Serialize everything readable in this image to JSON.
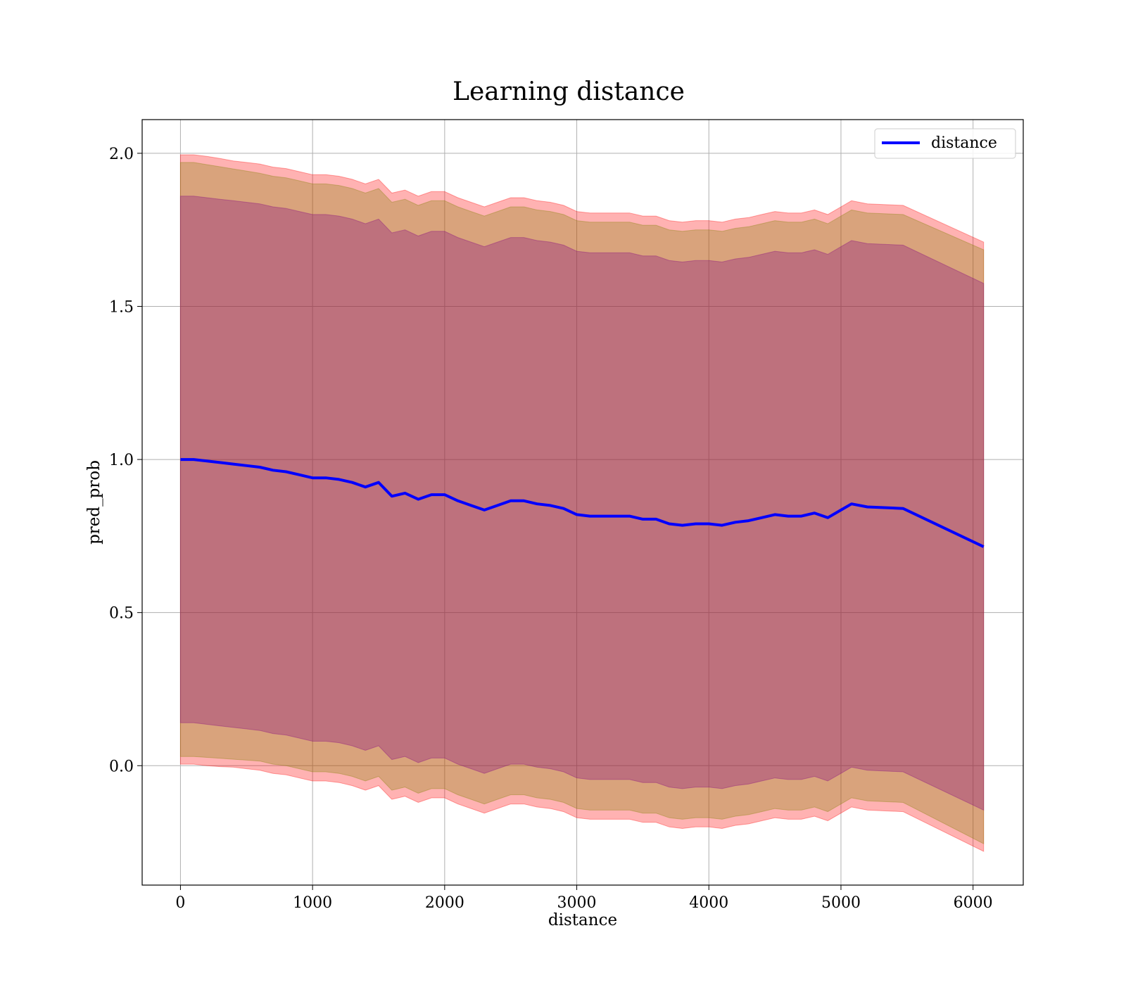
{
  "chart_data": {
    "type": "line",
    "title": "Learning distance",
    "xlabel": "distance",
    "ylabel": "pred_prob",
    "xlim": [
      -290,
      6380
    ],
    "ylim": [
      -0.39,
      2.11
    ],
    "xticks": [
      0,
      1000,
      2000,
      3000,
      4000,
      5000,
      6000
    ],
    "yticks": [
      0.0,
      0.5,
      1.0,
      1.5,
      2.0
    ],
    "xtick_labels": [
      "0",
      "1000",
      "2000",
      "3000",
      "4000",
      "5000",
      "6000"
    ],
    "ytick_labels": [
      "0.0",
      "0.5",
      "1.0",
      "1.5",
      "2.0"
    ],
    "grid": true,
    "legend": {
      "position": "top-right",
      "entries": [
        "distance"
      ]
    },
    "colors": {
      "line": "#0000ff",
      "band_outer": "#ff0000",
      "band_middle": "#808000",
      "band_inner": "#800080",
      "grid": "#b0b0b0"
    },
    "x": [
      0,
      100,
      200,
      300,
      400,
      500,
      600,
      700,
      800,
      900,
      1000,
      1100,
      1200,
      1300,
      1400,
      1500,
      1600,
      1700,
      1800,
      1900,
      2000,
      2100,
      2200,
      2300,
      2400,
      2500,
      2600,
      2700,
      2800,
      2900,
      3000,
      3100,
      3200,
      3300,
      3400,
      3500,
      3600,
      3700,
      3800,
      3900,
      4000,
      4100,
      4200,
      4300,
      4400,
      4500,
      4600,
      4700,
      4800,
      4900,
      5000,
      5080,
      5200,
      5470,
      6080
    ],
    "series": [
      {
        "name": "distance",
        "values": [
          1.0,
          1.0,
          0.995,
          0.99,
          0.985,
          0.98,
          0.975,
          0.965,
          0.96,
          0.95,
          0.94,
          0.94,
          0.935,
          0.925,
          0.91,
          0.925,
          0.88,
          0.89,
          0.87,
          0.885,
          0.885,
          0.865,
          0.85,
          0.835,
          0.85,
          0.865,
          0.865,
          0.855,
          0.85,
          0.84,
          0.82,
          0.815,
          0.815,
          0.815,
          0.815,
          0.805,
          0.805,
          0.79,
          0.785,
          0.79,
          0.79,
          0.785,
          0.795,
          0.8,
          0.81,
          0.82,
          0.815,
          0.815,
          0.825,
          0.81,
          0.835,
          0.855,
          0.845,
          0.84,
          0.715
        ],
        "bands": [
          {
            "level": "outer",
            "half_width": [
              0.995,
              0.995,
              0.995,
              0.993,
              0.99,
              0.99,
              0.99,
              0.99,
              0.99,
              0.99,
              0.99,
              0.99,
              0.99,
              0.99,
              0.99,
              0.99,
              0.99,
              0.99,
              0.99,
              0.99,
              0.99,
              0.99,
              0.99,
              0.99,
              0.99,
              0.99,
              0.99,
              0.99,
              0.99,
              0.99,
              0.99,
              0.99,
              0.99,
              0.99,
              0.99,
              0.99,
              0.99,
              0.99,
              0.99,
              0.99,
              0.99,
              0.99,
              0.99,
              0.99,
              0.99,
              0.99,
              0.99,
              0.99,
              0.99,
              0.99,
              0.99,
              0.99,
              0.99,
              0.99,
              0.995
            ]
          },
          {
            "level": "middle",
            "half_width": [
              0.97,
              0.97,
              0.968,
              0.966,
              0.964,
              0.962,
              0.96,
              0.96,
              0.96,
              0.96,
              0.96,
              0.96,
              0.96,
              0.96,
              0.96,
              0.96,
              0.96,
              0.96,
              0.96,
              0.96,
              0.96,
              0.96,
              0.96,
              0.96,
              0.96,
              0.96,
              0.96,
              0.96,
              0.96,
              0.96,
              0.96,
              0.96,
              0.96,
              0.96,
              0.96,
              0.96,
              0.96,
              0.96,
              0.96,
              0.96,
              0.96,
              0.96,
              0.96,
              0.96,
              0.96,
              0.96,
              0.96,
              0.96,
              0.96,
              0.96,
              0.96,
              0.96,
              0.96,
              0.96,
              0.97
            ]
          },
          {
            "level": "inner",
            "half_width": [
              0.86,
              0.86,
              0.86,
              0.86,
              0.86,
              0.86,
              0.86,
              0.86,
              0.86,
              0.86,
              0.86,
              0.86,
              0.86,
              0.86,
              0.86,
              0.86,
              0.86,
              0.86,
              0.86,
              0.86,
              0.86,
              0.86,
              0.86,
              0.86,
              0.86,
              0.86,
              0.86,
              0.86,
              0.86,
              0.86,
              0.86,
              0.86,
              0.86,
              0.86,
              0.86,
              0.86,
              0.86,
              0.86,
              0.86,
              0.86,
              0.86,
              0.86,
              0.86,
              0.86,
              0.86,
              0.86,
              0.86,
              0.86,
              0.86,
              0.86,
              0.86,
              0.86,
              0.86,
              0.86,
              0.86
            ]
          }
        ]
      }
    ]
  }
}
